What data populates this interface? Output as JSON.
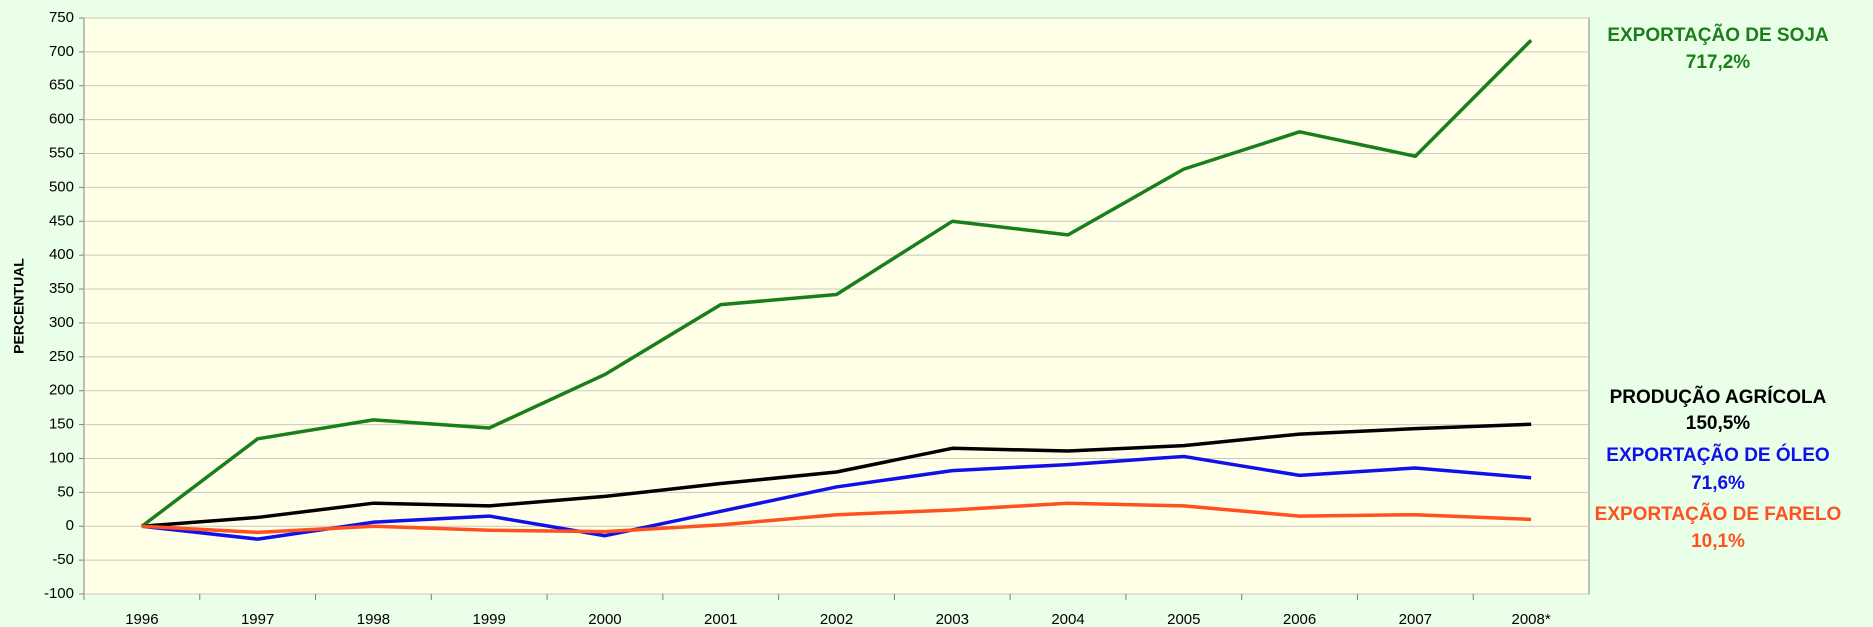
{
  "chart_data": {
    "type": "line",
    "ylabel": "PERCENTUAL",
    "categories": [
      "1996",
      "1997",
      "1998",
      "1999",
      "2000",
      "2001",
      "2002",
      "2003",
      "2004",
      "2005",
      "2006",
      "2007",
      "2008*"
    ],
    "series": [
      {
        "name": "EXPORTAÇÃO DE SOJA",
        "color": "#1a7f1a",
        "values": [
          0,
          129,
          157,
          145,
          224,
          327,
          342,
          450,
          430,
          527,
          582,
          546,
          717.2
        ],
        "value_labels": [
          null,
          null,
          null,
          null,
          null,
          null,
          null,
          null,
          null,
          null,
          null,
          null,
          "717,2%"
        ]
      },
      {
        "name": "PRODUÇÃO AGRÍCOLA",
        "color": "#000000",
        "values": [
          0,
          13,
          34,
          30,
          44,
          63,
          80,
          115,
          111,
          119,
          136,
          144,
          150.5
        ],
        "value_labels": [
          null,
          null,
          null,
          null,
          null,
          null,
          null,
          null,
          null,
          null,
          null,
          null,
          "150,5%"
        ]
      },
      {
        "name": "EXPORTAÇÃO DE ÓLEO",
        "color": "#1010e8",
        "values": [
          0,
          -19,
          6,
          15,
          -14,
          22,
          58,
          82,
          91,
          103,
          75,
          86,
          71.6
        ],
        "value_labels": [
          null,
          null,
          null,
          null,
          null,
          null,
          null,
          null,
          null,
          null,
          null,
          null,
          "71,6%"
        ]
      },
      {
        "name": "EXPORTAÇÃO DE FARELO",
        "color": "#ff5020",
        "values": [
          0,
          -9,
          0,
          -6,
          -8,
          2,
          17,
          24,
          34,
          30,
          15,
          17,
          10.1
        ],
        "value_labels": [
          null,
          null,
          null,
          null,
          null,
          null,
          null,
          null,
          null,
          null,
          null,
          null,
          "10,1%"
        ]
      }
    ],
    "ylim": [
      -100,
      750
    ],
    "yticks": [
      -100,
      -50,
      0,
      50,
      100,
      150,
      200,
      250,
      300,
      350,
      400,
      450,
      500,
      550,
      600,
      650,
      700,
      750
    ],
    "grid": true
  }
}
